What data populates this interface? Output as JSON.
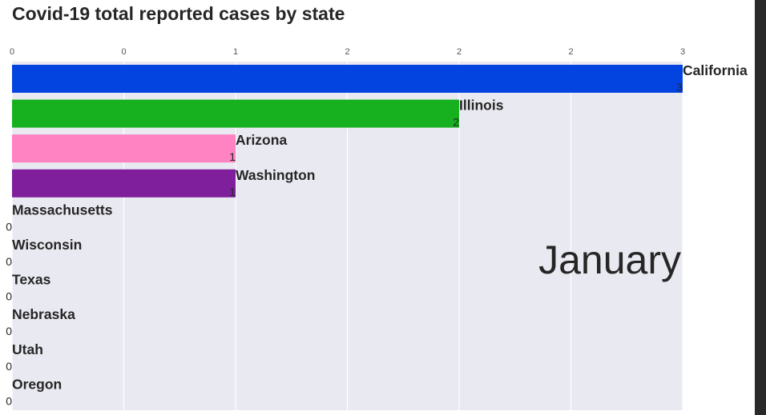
{
  "chart_data": {
    "type": "bar",
    "orientation": "horizontal",
    "title": "Covid-19 total reported cases by state",
    "period_label": "January",
    "x_ticks": [
      "0",
      "0",
      "1",
      "2",
      "2",
      "2",
      "3"
    ],
    "xlim": [
      0,
      3
    ],
    "grid": true,
    "categories": [
      "California",
      "Illinois",
      "Arizona",
      "Washington",
      "Massachusetts",
      "Wisconsin",
      "Texas",
      "Nebraska",
      "Utah",
      "Oregon"
    ],
    "values": [
      3,
      2,
      1,
      1,
      0,
      0,
      0,
      0,
      0,
      0
    ],
    "value_labels": [
      "3",
      "2",
      "1",
      "1",
      "0",
      "0",
      "0",
      "0",
      "0",
      "0"
    ],
    "colors": [
      "#0344e0",
      "#17b01f",
      "#ff82c2",
      "#7f1f9c",
      "#0344e0",
      "#0344e0",
      "#0344e0",
      "#0344e0",
      "#0344e0",
      "#0344e0"
    ],
    "plot_background": "#e9e9f1"
  }
}
